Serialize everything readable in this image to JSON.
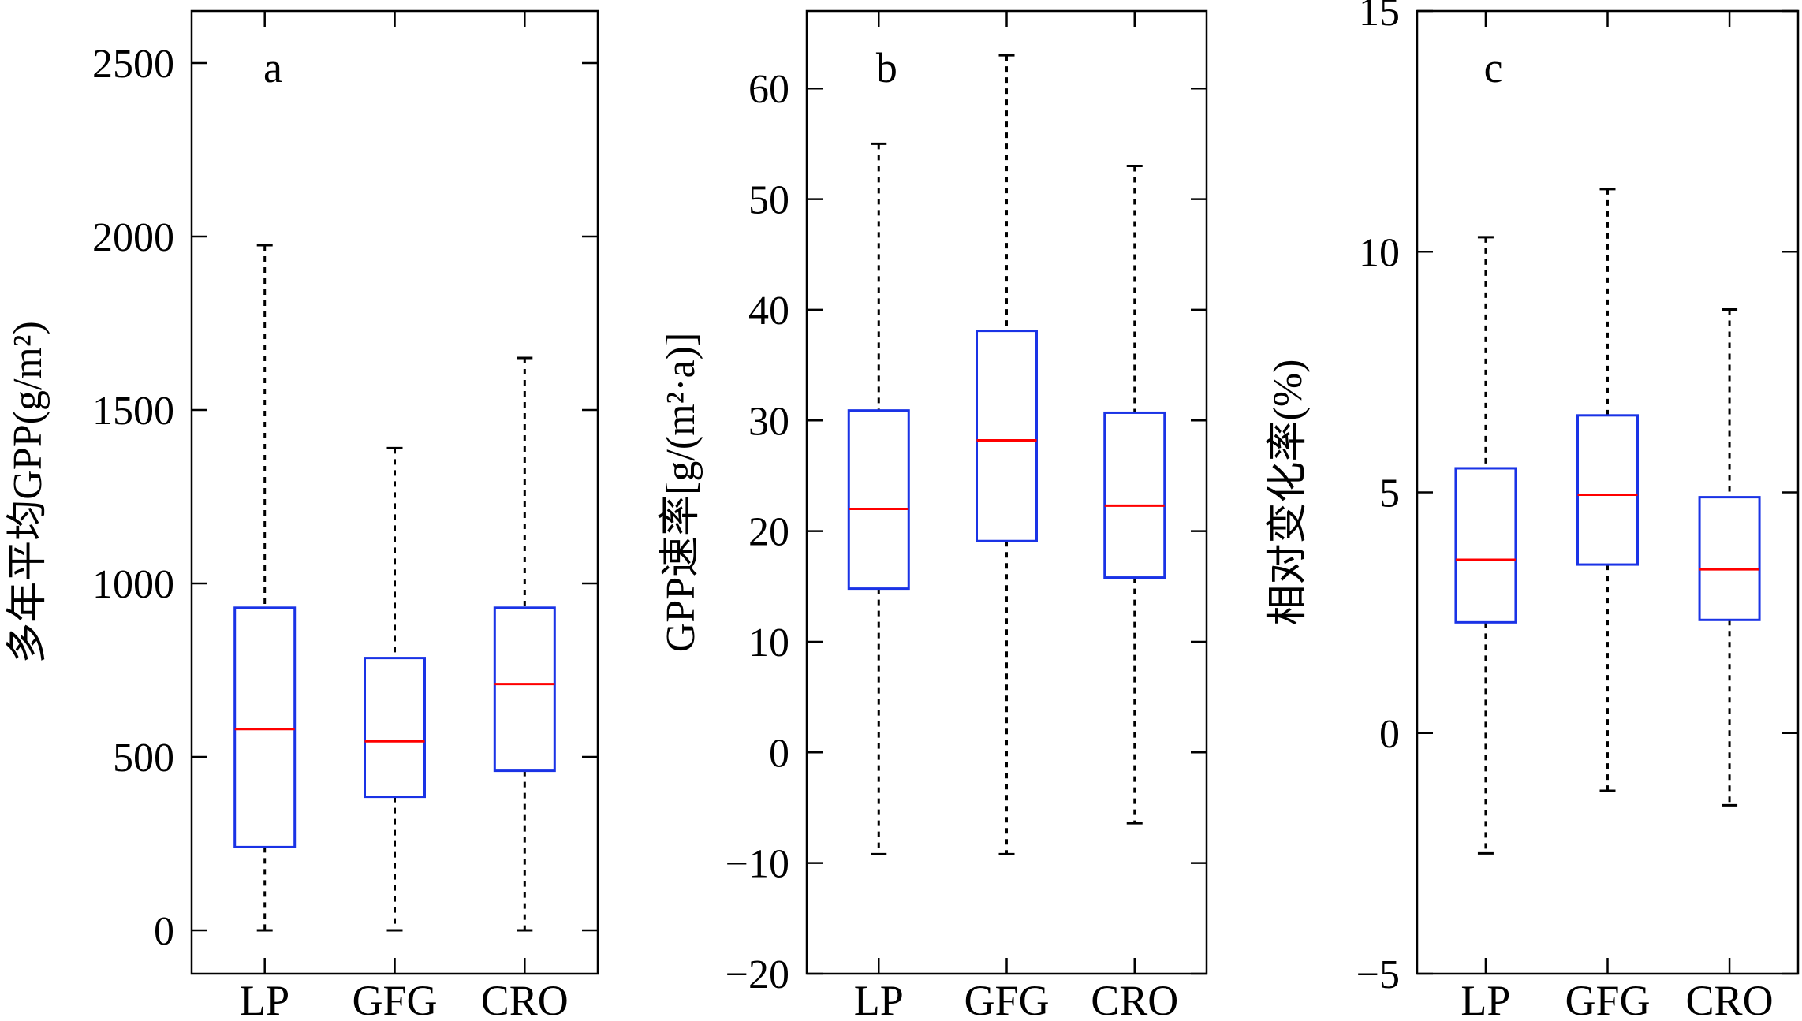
{
  "chart_data": [
    {
      "type": "boxplot",
      "panel_label": "a",
      "ylabel": "多年平均GPP(g/m²)",
      "categories": [
        "LP",
        "GFG",
        "CRO"
      ],
      "ylim": [
        -125,
        2650
      ],
      "yticks": [
        0,
        500,
        1000,
        1500,
        2000,
        2500
      ],
      "ytick_labels": [
        "0",
        "500",
        "1000",
        "1500",
        "2000",
        "2500"
      ],
      "boxes": [
        {
          "category": "LP",
          "whisker_low": 0,
          "q1": 240,
          "median": 580,
          "q3": 930,
          "whisker_high": 1975
        },
        {
          "category": "GFG",
          "whisker_low": 0,
          "q1": 385,
          "median": 545,
          "q3": 785,
          "whisker_high": 1390
        },
        {
          "category": "CRO",
          "whisker_low": 0,
          "q1": 460,
          "median": 710,
          "q3": 930,
          "whisker_high": 1650
        }
      ]
    },
    {
      "type": "boxplot",
      "panel_label": "b",
      "ylabel": "GPP速率[g/(m²·a)]",
      "categories": [
        "LP",
        "GFG",
        "CRO"
      ],
      "ylim": [
        -20,
        67
      ],
      "yticks": [
        -20,
        -10,
        0,
        10,
        20,
        30,
        40,
        50,
        60
      ],
      "ytick_labels": [
        "−20",
        "−10",
        "0",
        "10",
        "20",
        "30",
        "40",
        "50",
        "60"
      ],
      "boxes": [
        {
          "category": "LP",
          "whisker_low": -9.2,
          "q1": 14.8,
          "median": 22.0,
          "q3": 30.9,
          "whisker_high": 55.0
        },
        {
          "category": "GFG",
          "whisker_low": -9.2,
          "q1": 19.1,
          "median": 28.2,
          "q3": 38.1,
          "whisker_high": 63.0
        },
        {
          "category": "CRO",
          "whisker_low": -6.4,
          "q1": 15.8,
          "median": 22.3,
          "q3": 30.7,
          "whisker_high": 53.0
        }
      ]
    },
    {
      "type": "boxplot",
      "panel_label": "c",
      "ylabel": "相对变化率(%)",
      "categories": [
        "LP",
        "GFG",
        "CRO"
      ],
      "ylim": [
        -5,
        15
      ],
      "yticks": [
        -5,
        0,
        5,
        10,
        15
      ],
      "ytick_labels": [
        "−5",
        "0",
        "5",
        "10",
        "15"
      ],
      "boxes": [
        {
          "category": "LP",
          "whisker_low": -2.5,
          "q1": 2.3,
          "median": 3.6,
          "q3": 5.5,
          "whisker_high": 10.3
        },
        {
          "category": "GFG",
          "whisker_low": -1.2,
          "q1": 3.5,
          "median": 4.95,
          "q3": 6.6,
          "whisker_high": 11.3
        },
        {
          "category": "CRO",
          "whisker_low": -1.5,
          "q1": 2.35,
          "median": 3.4,
          "q3": 4.9,
          "whisker_high": 8.8
        }
      ]
    }
  ],
  "colors": {
    "box": "#1a33e6",
    "median": "#ff0000",
    "whisker": "#000000",
    "axis": "#000000"
  }
}
